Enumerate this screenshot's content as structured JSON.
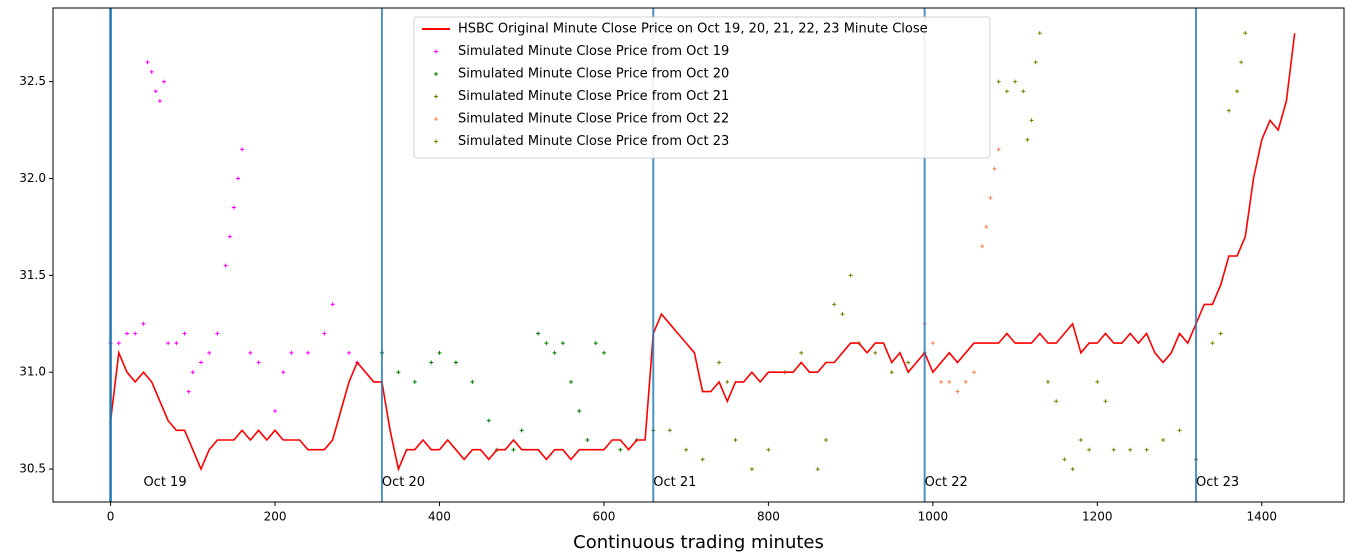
{
  "chart_data": {
    "type": "line",
    "xlabel": "Continuous trading minutes",
    "xlim": [
      -70,
      1500
    ],
    "ylim": [
      30.33,
      32.88
    ],
    "xticks": [
      0,
      200,
      400,
      600,
      800,
      1000,
      1200,
      1400
    ],
    "yticks": [
      30.5,
      {
        "value": 31,
        "label": "31.0"
      },
      31.5,
      {
        "value": 32,
        "label": "32.0"
      },
      32.5
    ],
    "legend": "upper center",
    "vlines": [
      0,
      330,
      660,
      990,
      1320
    ],
    "vline_color": "#1f77b4",
    "annotations": [
      {
        "text": "Oct 19",
        "x": 40,
        "y": 30.43
      },
      {
        "text": "Oct 20",
        "x": 330,
        "y": 30.43
      },
      {
        "text": "Oct 21",
        "x": 660,
        "y": 30.43
      },
      {
        "text": "Oct 22",
        "x": 990,
        "y": 30.43
      },
      {
        "text": "Oct 23",
        "x": 1320,
        "y": 30.43
      }
    ],
    "series": [
      {
        "name": "HSBC Original Minute Close Price on Oct 19, 20, 21, 22, 23 Minute Close",
        "kind": "line",
        "color": "#ff0000",
        "x": [
          0,
          10,
          20,
          30,
          40,
          50,
          60,
          70,
          80,
          90,
          100,
          110,
          120,
          130,
          140,
          150,
          160,
          170,
          180,
          190,
          200,
          210,
          220,
          230,
          240,
          250,
          260,
          270,
          280,
          290,
          300,
          310,
          320,
          330,
          340,
          350,
          360,
          370,
          380,
          390,
          400,
          410,
          420,
          430,
          440,
          450,
          460,
          470,
          480,
          490,
          500,
          510,
          520,
          530,
          540,
          550,
          560,
          570,
          580,
          590,
          600,
          610,
          620,
          630,
          640,
          650,
          660,
          670,
          680,
          690,
          700,
          710,
          720,
          730,
          740,
          750,
          760,
          770,
          780,
          790,
          800,
          810,
          820,
          830,
          840,
          850,
          860,
          870,
          880,
          890,
          900,
          910,
          920,
          930,
          940,
          950,
          960,
          970,
          980,
          990,
          1000,
          1010,
          1020,
          1030,
          1040,
          1050,
          1060,
          1070,
          1080,
          1090,
          1100,
          1110,
          1120,
          1130,
          1140,
          1150,
          1160,
          1170,
          1180,
          1190,
          1200,
          1210,
          1220,
          1230,
          1240,
          1250,
          1260,
          1270,
          1280,
          1290,
          1300,
          1310,
          1320,
          1330,
          1340,
          1350,
          1360,
          1370,
          1380,
          1390,
          1400,
          1410,
          1420,
          1430,
          1440
        ],
        "values": [
          30.75,
          31.1,
          31.0,
          30.95,
          31.0,
          30.95,
          30.85,
          30.75,
          30.7,
          30.7,
          30.6,
          30.5,
          30.6,
          30.65,
          30.65,
          30.65,
          30.7,
          30.65,
          30.7,
          30.65,
          30.7,
          30.65,
          30.65,
          30.65,
          30.6,
          30.6,
          30.6,
          30.65,
          30.8,
          30.95,
          31.05,
          31.0,
          30.95,
          30.95,
          30.7,
          30.5,
          30.6,
          30.6,
          30.65,
          30.6,
          30.6,
          30.65,
          30.6,
          30.55,
          30.6,
          30.6,
          30.55,
          30.6,
          30.6,
          30.65,
          30.6,
          30.6,
          30.6,
          30.55,
          30.6,
          30.6,
          30.55,
          30.6,
          30.6,
          30.6,
          30.6,
          30.65,
          30.65,
          30.6,
          30.65,
          30.65,
          31.2,
          31.3,
          31.25,
          31.2,
          31.15,
          31.1,
          30.9,
          30.9,
          30.95,
          30.85,
          30.95,
          30.95,
          31.0,
          30.95,
          31.0,
          31.0,
          31.0,
          31.0,
          31.05,
          31.0,
          31.0,
          31.05,
          31.05,
          31.1,
          31.15,
          31.15,
          31.1,
          31.15,
          31.15,
          31.05,
          31.1,
          31.0,
          31.05,
          31.1,
          31.0,
          31.05,
          31.1,
          31.05,
          31.1,
          31.15,
          31.15,
          31.15,
          31.15,
          31.2,
          31.15,
          31.15,
          31.15,
          31.2,
          31.15,
          31.15,
          31.2,
          31.25,
          31.1,
          31.15,
          31.15,
          31.2,
          31.15,
          31.15,
          31.2,
          31.15,
          31.2,
          31.1,
          31.05,
          31.1,
          31.2,
          31.15,
          31.25,
          31.35,
          31.35,
          31.45,
          31.6,
          31.6,
          31.7,
          32.0,
          32.2,
          32.3,
          32.25,
          32.4,
          32.75
        ]
      },
      {
        "name": "Simulated Minute Close Price from Oct 19",
        "kind": "scatter",
        "color": "#ff00ff",
        "x": [
          0,
          10,
          20,
          30,
          40,
          45,
          50,
          55,
          60,
          65,
          70,
          80,
          90,
          95,
          100,
          110,
          120,
          130,
          140,
          145,
          150,
          155,
          160,
          170,
          180,
          200,
          210,
          220,
          240,
          260,
          270,
          290,
          300
        ],
        "values": [
          31.15,
          31.15,
          31.2,
          31.2,
          31.25,
          32.6,
          32.55,
          32.45,
          32.4,
          32.5,
          31.15,
          31.15,
          31.2,
          30.9,
          31.0,
          31.05,
          31.1,
          31.2,
          31.55,
          31.7,
          31.85,
          32.0,
          32.15,
          31.1,
          31.05,
          30.8,
          31.0,
          31.1,
          31.1,
          31.2,
          31.35,
          31.1,
          31.05
        ]
      },
      {
        "name": "Simulated Minute Close Price from Oct 20",
        "kind": "scatter",
        "color": "#008000",
        "x": [
          330,
          350,
          370,
          390,
          400,
          420,
          440,
          460,
          470,
          490,
          500,
          520,
          530,
          540,
          550,
          560,
          570,
          580,
          590,
          600,
          620,
          640
        ],
        "values": [
          31.1,
          31.0,
          30.95,
          31.05,
          31.1,
          31.05,
          30.95,
          30.75,
          30.6,
          30.6,
          30.7,
          31.2,
          31.15,
          31.1,
          31.15,
          30.95,
          30.8,
          30.65,
          31.15,
          31.1,
          30.6,
          30.65
        ]
      },
      {
        "name": "Simulated Minute Close Price from Oct 21",
        "kind": "scatter",
        "color": "#7a7a00",
        "x": [
          660,
          680,
          700,
          720,
          740,
          750,
          760,
          780,
          800,
          820,
          840,
          860,
          870,
          880,
          890,
          900,
          910,
          930,
          950,
          970,
          990
        ],
        "values": [
          30.7,
          30.7,
          30.6,
          30.55,
          31.05,
          30.95,
          30.65,
          30.5,
          30.6,
          31.0,
          31.1,
          30.5,
          30.65,
          31.35,
          31.3,
          31.5,
          31.15,
          31.1,
          31.0,
          31.05,
          31.1
        ]
      },
      {
        "name": "Simulated Minute Close Price from Oct 22",
        "kind": "scatter",
        "color": "#ff7f50",
        "x": [
          990,
          1000,
          1010,
          1020,
          1030,
          1040,
          1050,
          1060,
          1065,
          1070,
          1075,
          1080
        ],
        "values": [
          31.25,
          31.15,
          30.95,
          30.95,
          30.9,
          30.95,
          31.0,
          31.65,
          31.75,
          31.9,
          32.05,
          32.15
        ]
      },
      {
        "name": "Simulated Minute Close Price from Oct 23",
        "kind": "scatter",
        "color": "#808000",
        "x": [
          1080,
          1090,
          1100,
          1110,
          1115,
          1120,
          1125,
          1130,
          1140,
          1150,
          1160,
          1170,
          1180,
          1190,
          1200,
          1210,
          1220,
          1240,
          1260,
          1280,
          1300,
          1320,
          1340,
          1350,
          1360,
          1370,
          1375,
          1380
        ],
        "values": [
          32.5,
          32.45,
          32.5,
          32.45,
          32.2,
          32.3,
          32.6,
          32.75,
          30.95,
          30.85,
          30.55,
          30.5,
          30.65,
          30.6,
          30.95,
          30.85,
          30.6,
          30.6,
          30.6,
          30.65,
          30.7,
          30.55,
          31.15,
          31.2,
          32.35,
          32.45,
          32.6,
          32.75
        ]
      }
    ]
  }
}
